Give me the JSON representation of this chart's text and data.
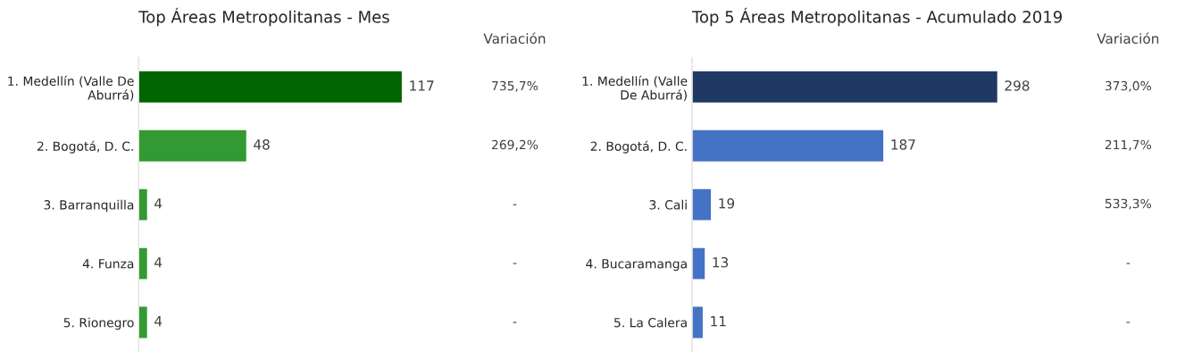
{
  "chart_data": [
    {
      "type": "bar",
      "orientation": "horizontal",
      "title": "Top Áreas Metropolitanas - Mes",
      "categories": [
        "1. Medellín (Valle De\nAburrá)",
        "2. Bogotá, D. C.",
        "3. Barranquilla",
        "4. Funza",
        "5. Rionegro"
      ],
      "values": [
        117,
        48,
        4,
        4,
        4
      ],
      "colors": [
        "#006400",
        "#339933",
        "#339933",
        "#339933",
        "#339933"
      ],
      "data_labels": true,
      "tick_labels": "y",
      "grid": false,
      "legend": false,
      "annotations": [
        "Variación",
        "735,7%",
        "269,2%",
        "-",
        "-",
        "-"
      ]
    },
    {
      "type": "bar",
      "orientation": "horizontal",
      "title": "Top 5 Áreas Metropolitanas - Acumulado 2019",
      "categories": [
        "1. Medellín (Valle\nDe Aburrá)",
        "2. Bogotá, D. C.",
        "3. Cali",
        "4. Bucaramanga",
        "5. La Calera"
      ],
      "values": [
        298,
        187,
        19,
        13,
        11
      ],
      "colors": [
        "#203864",
        "#4472c4",
        "#4472c4",
        "#4472c4",
        "#4472c4"
      ],
      "data_labels": true,
      "tick_labels": "y",
      "grid": false,
      "legend": false,
      "annotations": [
        "Variación",
        "373,0%",
        "211,7%",
        "533,3%",
        "-",
        "-"
      ]
    }
  ]
}
